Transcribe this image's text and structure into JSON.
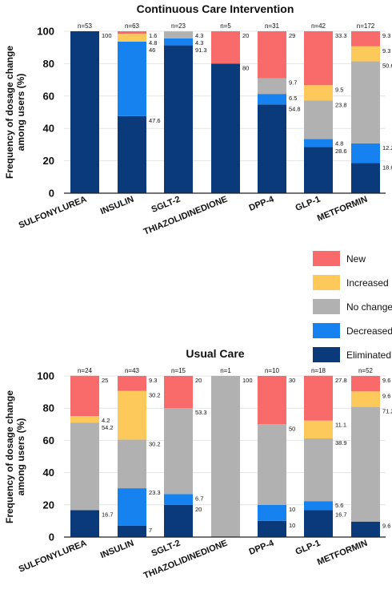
{
  "colors": {
    "eliminated": "#0a3a7a",
    "decreased": "#1582f0",
    "no_change": "#b1b1b1",
    "increased": "#fcc95a",
    "new": "#f96a6a"
  },
  "legend": [
    {
      "key": "new",
      "label": "New"
    },
    {
      "key": "increased",
      "label": "Increased"
    },
    {
      "key": "no_change",
      "label": "No change"
    },
    {
      "key": "decreased",
      "label": "Decreased"
    },
    {
      "key": "eliminated",
      "label": "Eliminated"
    }
  ],
  "chart_data": [
    {
      "type": "bar",
      "stacked": true,
      "title": "Continuous Care Intervention",
      "ylabel": "Frequency of dosage change among users (%)",
      "ylim": [
        0,
        100
      ],
      "yticks": [
        "0",
        "20",
        "40",
        "60",
        "80",
        "100"
      ],
      "categories": [
        "SULFONYLUREA",
        "INSULIN",
        "SGLT-2",
        "THIAZOLIDINEDIONE",
        "DPP-4",
        "GLP-1",
        "METFORMIN"
      ],
      "n_labels": [
        "n=53",
        "n=63",
        "n=23",
        "n=5",
        "n=31",
        "n=42",
        "n=172"
      ],
      "series": [
        {
          "key": "eliminated",
          "values": [
            100,
            47.6,
            91.3,
            80,
            54.8,
            28.6,
            18.6
          ]
        },
        {
          "key": "decreased",
          "values": [
            0,
            46,
            4.3,
            0,
            6.5,
            4.8,
            12.2
          ]
        },
        {
          "key": "no_change",
          "values": [
            0,
            0,
            4.3,
            0,
            9.7,
            23.8,
            50.6
          ]
        },
        {
          "key": "increased",
          "values": [
            0,
            4.8,
            0,
            0,
            0,
            9.5,
            9.3
          ]
        },
        {
          "key": "new",
          "values": [
            0,
            1.6,
            0,
            20,
            29,
            33.3,
            9.3
          ]
        }
      ],
      "value_labels": [
        [
          "100"
        ],
        [
          "1.6",
          "4.8",
          "46",
          "47.6"
        ],
        [
          "4.3",
          "4.3",
          "91.3"
        ],
        [
          "20",
          "80"
        ],
        [
          "29",
          "9.7",
          "6.5",
          "54.8"
        ],
        [
          "33.3",
          "9.5",
          "23.8",
          "4.8",
          "28.6"
        ],
        [
          "9.3",
          "9.3",
          "50.6",
          "12.2",
          "18.6"
        ]
      ]
    },
    {
      "type": "bar",
      "stacked": true,
      "title": "Usual Care",
      "ylabel": "Frequency of dosage change among users (%)",
      "ylim": [
        0,
        100
      ],
      "yticks": [
        "0",
        "20",
        "40",
        "60",
        "80",
        "100"
      ],
      "categories": [
        "SULFONYLUREA",
        "INSULIN",
        "SGLT-2",
        "THIAZOLIDINEDIONE",
        "DPP-4",
        "GLP-1",
        "METFORMIN"
      ],
      "n_labels": [
        "n=24",
        "n=43",
        "n=15",
        "n=1",
        "n=10",
        "n=18",
        "n=52"
      ],
      "series": [
        {
          "key": "eliminated",
          "values": [
            16.7,
            7,
            20,
            0,
            10,
            16.7,
            9.6
          ]
        },
        {
          "key": "decreased",
          "values": [
            0,
            23.3,
            6.7,
            0,
            10,
            5.6,
            0
          ]
        },
        {
          "key": "no_change",
          "values": [
            54.2,
            30.2,
            53.3,
            100,
            50,
            38.9,
            71.2
          ]
        },
        {
          "key": "increased",
          "values": [
            4.2,
            30.2,
            0,
            0,
            0,
            11.1,
            9.6
          ]
        },
        {
          "key": "new",
          "values": [
            25,
            9.3,
            20,
            0,
            30,
            27.8,
            9.6
          ]
        }
      ],
      "value_labels": [
        [
          "25",
          "4.2",
          "54.2",
          "16.7"
        ],
        [
          "9.3",
          "30.2",
          "30.2",
          "23.3",
          "7"
        ],
        [
          "20",
          "53.3",
          "6.7",
          "20"
        ],
        [
          "100"
        ],
        [
          "30",
          "50",
          "10",
          "10"
        ],
        [
          "27.8",
          "11.1",
          "38.9",
          "5.6",
          "16.7"
        ],
        [
          "9.6",
          "9.6",
          "71.2",
          "9.6"
        ]
      ]
    }
  ]
}
